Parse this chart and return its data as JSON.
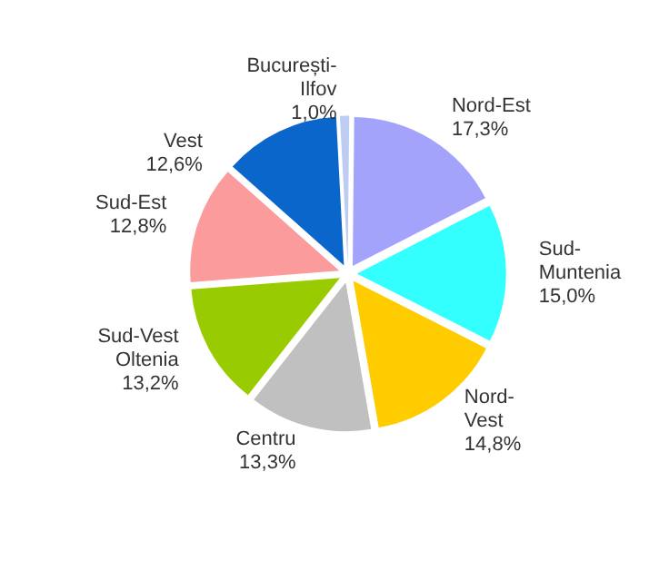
{
  "chart_data": {
    "type": "pie",
    "categories": [
      "București-\nIlfov",
      "Nord-Est",
      "Sud-\nMuntenia",
      "Nord-\nVest",
      "Centru",
      "Sud-Vest\nOltenia",
      "Sud-Est",
      "Vest"
    ],
    "values": [
      1.0,
      17.3,
      15.0,
      14.8,
      13.3,
      13.2,
      12.8,
      12.6
    ],
    "value_labels": [
      "1,0%",
      "17,3%",
      "15,0%",
      "14,8%",
      "13,3%",
      "13,2%",
      "12,8%",
      "12,6%"
    ],
    "colors": [
      "#bcccf2",
      "#a3a3fb",
      "#33ffff",
      "#ffcc00",
      "#c0c0c0",
      "#99cc00",
      "#fb9b9b",
      "#0b66cc"
    ],
    "legend": false
  }
}
